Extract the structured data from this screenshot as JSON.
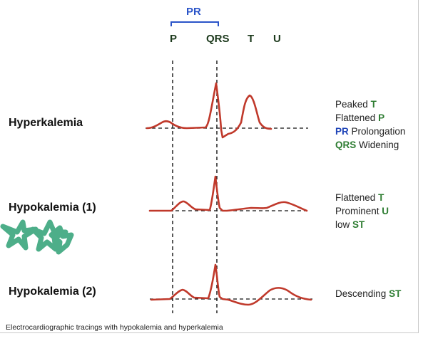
{
  "header": {
    "pr": "PR",
    "waves": [
      "P",
      "QRS",
      "T",
      "U"
    ]
  },
  "rows": [
    {
      "label": "Hyperkalemia",
      "findings": [
        {
          "key": "Peaked",
          "word": "T",
          "order": "prefix-text"
        },
        {
          "key": "Flattened",
          "word": "P",
          "order": "prefix-text"
        },
        {
          "key": "PR",
          "word": "Prolongation",
          "order": "keyword-first",
          "color": "blue"
        },
        {
          "key": "QRS",
          "word": "Widening",
          "order": "keyword-first",
          "color": "green"
        }
      ]
    },
    {
      "label": "Hypokalemia (1)",
      "findings": [
        {
          "key": "Flattened",
          "word": "T",
          "order": "prefix-text"
        },
        {
          "key": "Prominent",
          "word": "U",
          "order": "prefix-text"
        },
        {
          "key": "low",
          "word": "ST",
          "order": "prefix-text"
        }
      ]
    },
    {
      "label": "Hypokalemia (2)",
      "findings": [
        {
          "key": "Descending",
          "word": "ST",
          "order": "prefix-text"
        }
      ]
    }
  ],
  "caption": "Electrocardiographic tracings with hypokalemia and hyperkalemia",
  "colors": {
    "trace": "#c0392b",
    "keyword_green": "#2e7d32",
    "keyword_blue": "#1f44b8",
    "bracket": "#2a54c8",
    "annotation_scribble": "#3aa57c"
  }
}
